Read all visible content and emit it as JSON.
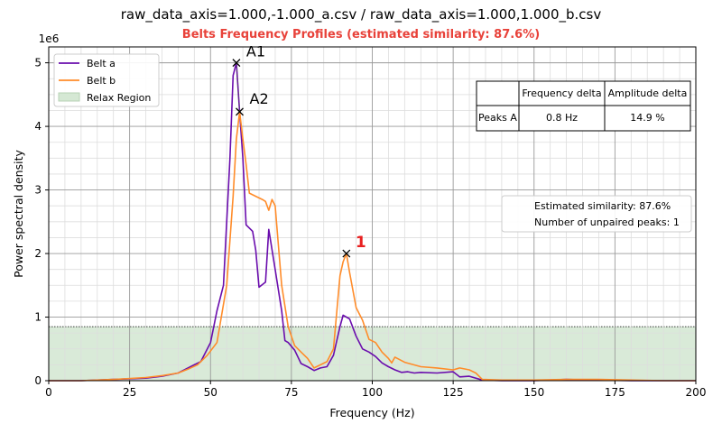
{
  "chart_data": {
    "type": "line",
    "title": "raw_data_axis=1.000,-1.000_a.csv / raw_data_axis=1.000,1.000_b.csv",
    "subtitle": "Belts Frequency Profiles (estimated similarity: 87.6%)",
    "xlabel": "Frequency (Hz)",
    "ylabel": "Power spectral density",
    "y_multiplier": "1e6",
    "xlim": [
      0,
      200
    ],
    "ylim": [
      0,
      5.25
    ],
    "x_ticks": [
      "0",
      "25",
      "50",
      "75",
      "100",
      "125",
      "150",
      "175",
      "200"
    ],
    "y_ticks": [
      "0",
      "1",
      "2",
      "3",
      "4",
      "5"
    ],
    "grid": true,
    "colors": {
      "belt_a": "#6a0dad",
      "belt_b": "#ff8c2a",
      "relax": "#d5e8d4",
      "annotation_red": "#e82020"
    },
    "legend": {
      "placement": "top-left",
      "entries": [
        "Belt a",
        "Belt b",
        "Relax Region"
      ]
    },
    "relax_region": {
      "y_max": 0.85
    },
    "series": [
      {
        "name": "Belt a",
        "x": [
          0,
          10,
          20,
          30,
          35,
          40,
          45,
          47,
          50,
          52,
          54,
          56,
          57,
          58,
          59,
          60,
          61,
          63,
          64,
          65,
          67,
          68,
          70,
          72,
          73,
          74,
          76,
          78,
          80,
          82,
          84,
          86,
          88,
          90,
          91,
          92,
          93,
          95,
          97,
          99,
          101,
          103,
          105,
          107,
          109,
          111,
          113,
          115,
          120,
          125,
          127,
          130,
          134,
          140,
          150,
          155,
          160,
          170,
          180,
          190,
          200
        ],
        "y": [
          0.0,
          0.0,
          0.02,
          0.04,
          0.07,
          0.12,
          0.25,
          0.3,
          0.6,
          1.1,
          1.5,
          3.5,
          4.8,
          5.0,
          4.23,
          3.5,
          2.45,
          2.35,
          2.05,
          1.47,
          1.55,
          2.38,
          1.75,
          1.1,
          0.63,
          0.6,
          0.48,
          0.27,
          0.22,
          0.16,
          0.2,
          0.22,
          0.4,
          0.85,
          1.03,
          1.0,
          0.97,
          0.7,
          0.5,
          0.45,
          0.38,
          0.28,
          0.22,
          0.17,
          0.13,
          0.14,
          0.12,
          0.13,
          0.12,
          0.14,
          0.06,
          0.07,
          0.01,
          0.0,
          0.0,
          0.01,
          0.02,
          0.01,
          0.0,
          0.0,
          0.0
        ]
      },
      {
        "name": "Belt b",
        "x": [
          0,
          10,
          20,
          30,
          35,
          40,
          43,
          46,
          49,
          52,
          55,
          57,
          58,
          59,
          60,
          61,
          62,
          64,
          66,
          67,
          68,
          69,
          70,
          72,
          74,
          75,
          76,
          78,
          80,
          82,
          84,
          86,
          88,
          90,
          91,
          92,
          93,
          95,
          97,
          99,
          101,
          103,
          105,
          106,
          107,
          110,
          115,
          120,
          125,
          127,
          130,
          132,
          134,
          140,
          150,
          160,
          170,
          180,
          190,
          200
        ],
        "y": [
          0.0,
          0.0,
          0.02,
          0.05,
          0.08,
          0.12,
          0.18,
          0.25,
          0.4,
          0.6,
          1.5,
          2.9,
          3.8,
          4.23,
          3.8,
          3.4,
          2.95,
          2.9,
          2.85,
          2.82,
          2.68,
          2.85,
          2.75,
          1.5,
          0.85,
          0.7,
          0.55,
          0.45,
          0.35,
          0.2,
          0.25,
          0.3,
          0.5,
          1.65,
          1.87,
          2.0,
          1.7,
          1.15,
          0.95,
          0.65,
          0.6,
          0.45,
          0.35,
          0.28,
          0.37,
          0.29,
          0.22,
          0.2,
          0.17,
          0.2,
          0.17,
          0.12,
          0.02,
          0.01,
          0.01,
          0.02,
          0.02,
          0.01,
          0.0,
          0.0
        ]
      }
    ],
    "peaks": [
      {
        "label": "A1",
        "x": 58,
        "y": 5.0,
        "color": "#000000"
      },
      {
        "label": "A2",
        "x": 59,
        "y": 4.23,
        "color": "#000000"
      },
      {
        "label": "1",
        "x": 92,
        "y": 2.0,
        "color": "#e82020"
      }
    ],
    "peak_table": {
      "headers": [
        "",
        "Frequency delta",
        "Amplitude delta"
      ],
      "rows": [
        [
          "Peaks A",
          "0.8 Hz",
          "14.9 %"
        ]
      ]
    },
    "info_box": [
      "Estimated similarity: 87.6%",
      "Number of unpaired peaks: 1"
    ]
  }
}
